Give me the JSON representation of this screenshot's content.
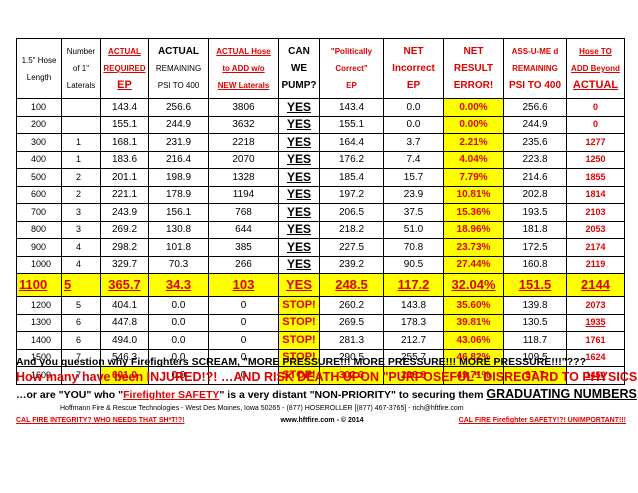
{
  "headers": [
    {
      "lines": [
        "",
        "1.5\" Hose",
        "Length"
      ],
      "style": "black"
    },
    {
      "lines": [
        "Number",
        "of 1\"",
        "Laterals"
      ],
      "style": "black"
    },
    {
      "lines": [
        "ACTUAL",
        "REQUIRED",
        "EP"
      ],
      "style": "red-underline-bigEP"
    },
    {
      "lines": [
        "ACTUAL",
        "REMAINING",
        "PSI TO 400"
      ],
      "style": "black-bold1"
    },
    {
      "lines": [
        "ACTUAL Hose",
        "to ADD w/o",
        "NEW Laterals"
      ],
      "style": "red"
    },
    {
      "lines": [
        "CAN",
        "WE",
        "PUMP?"
      ],
      "style": "black-bold"
    },
    {
      "lines": [
        "\"Politically",
        "Correct\"",
        "EP"
      ],
      "style": "red"
    },
    {
      "lines": [
        "NET",
        "Incorrect",
        "EP"
      ],
      "style": "red"
    },
    {
      "lines": [
        "NET",
        "RESULT",
        "ERROR!"
      ],
      "style": "red"
    },
    {
      "lines": [
        "ASS-U-ME d",
        "REMAINING",
        "PSI TO 400"
      ],
      "style": "red"
    },
    {
      "lines": [
        "Hose TO",
        "ADD Beyond",
        "ACTUAL"
      ],
      "style": "red"
    }
  ],
  "rows": [
    {
      "len": "100",
      "lat": "",
      "ep": "143.4",
      "rem": "256.6",
      "add": "3806",
      "can": "YES",
      "pc": "143.4",
      "ni": "0.0",
      "err": "0.00%",
      "ass": "256.6",
      "hose": "0"
    },
    {
      "len": "200",
      "lat": "",
      "ep": "155.1",
      "rem": "244.9",
      "add": "3632",
      "can": "YES",
      "pc": "155.1",
      "ni": "0.0",
      "err": "0.00%",
      "ass": "244.9",
      "hose": "0"
    },
    {
      "len": "300",
      "lat": "1",
      "ep": "168.1",
      "rem": "231.9",
      "add": "2218",
      "can": "YES",
      "pc": "164.4",
      "ni": "3.7",
      "err": "2.21%",
      "ass": "235.6",
      "hose": "1277"
    },
    {
      "len": "400",
      "lat": "1",
      "ep": "183.6",
      "rem": "216.4",
      "add": "2070",
      "can": "YES",
      "pc": "176.2",
      "ni": "7.4",
      "err": "4.04%",
      "ass": "223.8",
      "hose": "1250"
    },
    {
      "len": "500",
      "lat": "2",
      "ep": "201.1",
      "rem": "198.9",
      "add": "1328",
      "can": "YES",
      "pc": "185.4",
      "ni": "15.7",
      "err": "7.79%",
      "ass": "214.6",
      "hose": "1855"
    },
    {
      "len": "600",
      "lat": "2",
      "ep": "221.1",
      "rem": "178.9",
      "add": "1194",
      "can": "YES",
      "pc": "197.2",
      "ni": "23.9",
      "err": "10.81%",
      "ass": "202.8",
      "hose": "1814"
    },
    {
      "len": "700",
      "lat": "3",
      "ep": "243.9",
      "rem": "156.1",
      "add": "768",
      "can": "YES",
      "pc": "206.5",
      "ni": "37.5",
      "err": "15.36%",
      "ass": "193.5",
      "hose": "2103"
    },
    {
      "len": "800",
      "lat": "3",
      "ep": "269.2",
      "rem": "130.8",
      "add": "644",
      "can": "YES",
      "pc": "218.2",
      "ni": "51.0",
      "err": "18.96%",
      "ass": "181.8",
      "hose": "2053"
    },
    {
      "len": "900",
      "lat": "4",
      "ep": "298.2",
      "rem": "101.8",
      "add": "385",
      "can": "YES",
      "pc": "227.5",
      "ni": "70.8",
      "err": "23.73%",
      "ass": "172.5",
      "hose": "2174"
    },
    {
      "len": "1000",
      "lat": "4",
      "ep": "329.7",
      "rem": "70.3",
      "add": "266",
      "can": "YES",
      "pc": "239.2",
      "ni": "90.5",
      "err": "27.44%",
      "ass": "160.8",
      "hose": "2119"
    },
    {
      "len": "1100",
      "lat": "5",
      "ep": "365.7",
      "rem": "34.3",
      "add": "103",
      "can": "YES",
      "pc": "248.5",
      "ni": "117.2",
      "err": "32.04%",
      "ass": "151.5",
      "hose": "2144"
    },
    {
      "len": "1200",
      "lat": "5",
      "ep": "404.1",
      "rem": "0.0",
      "add": "0",
      "can": "STOP!",
      "pc": "260.2",
      "ni": "143.8",
      "err": "35.60%",
      "ass": "139.8",
      "hose": "2073"
    },
    {
      "len": "1300",
      "lat": "6",
      "ep": "447.8",
      "rem": "0.0",
      "add": "0",
      "can": "STOP!",
      "pc": "269.5",
      "ni": "178.3",
      "err": "39.81%",
      "ass": "130.5",
      "hose": "1935"
    },
    {
      "len": "1400",
      "lat": "6",
      "ep": "494.0",
      "rem": "0.0",
      "add": "0",
      "can": "STOP!",
      "pc": "281.3",
      "ni": "212.7",
      "err": "43.06%",
      "ass": "118.7",
      "hose": "1761"
    },
    {
      "len": "1500",
      "lat": "7",
      "ep": "546.3",
      "rem": "0.0",
      "add": "0",
      "can": "STOP!",
      "pc": "290.5",
      "ni": "255.7",
      "err": "46.82%",
      "ass": "109.5",
      "hose": "1624"
    },
    {
      "len": "1600",
      "lat": "7",
      "ep": "601.0",
      "rem": "0.0",
      "add": "0",
      "can": "STOP!",
      "pc": "302.3",
      "ni": "298.8",
      "err": "49.71%",
      "ass": "97.7",
      "hose": "1450"
    }
  ],
  "footer": {
    "line1": "And you question why Firefighters SCREAM, \"MORE PRESSURE!!! MORE PRESSURE!!! MORE PRESSURE!!!\"???",
    "line2": "How many have been INJURED!?! …AND RISK DEATH UPON \"PURPOSEFUL\" DISREGARD TO PHYSICS!?!",
    "line3a": "…or are \"YOU\" who \"",
    "line3b": "Firefighter SAFETY",
    "line3c": "\" is a very distant \"NON-PRIORITY\" to securing them ",
    "line3d": "GRADUATING NUMBERS",
    "line3e": "!?!",
    "credit": "Hoffmann Fire & Rescue Technologies - West Des Moines, Iowa  50265 - (877) HOSEROLLER [(877) 467-3765] - rich@hftfire.com",
    "left": "CAL FIRE INTEGRITY?  WHO NEEDS THAT SH*T!?!",
    "center": "www.hftfire.com - © 2014",
    "right": "CAL FIRE Firefighter SAFETY!?!  UNIMPORTANT!!!"
  },
  "colors": {
    "red": "#e00000",
    "yellow": "#ffff00"
  }
}
